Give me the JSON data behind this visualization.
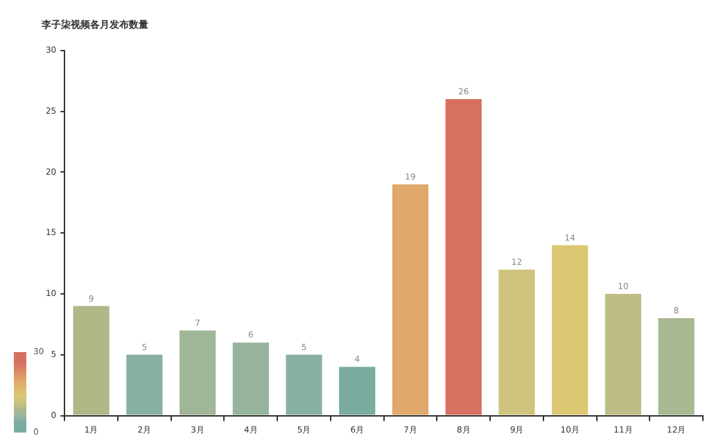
{
  "chart_data": {
    "type": "bar",
    "title": "李子柒视频各月发布数量",
    "categories": [
      "1月",
      "2月",
      "3月",
      "4月",
      "5月",
      "6月",
      "7月",
      "8月",
      "9月",
      "10月",
      "11月",
      "12月"
    ],
    "values": [
      9,
      5,
      7,
      6,
      5,
      4,
      19,
      26,
      12,
      14,
      10,
      8
    ],
    "colors": [
      "#b0b888",
      "#88b0a0",
      "#a0b698",
      "#96b49c",
      "#88b0a0",
      "#7aaca0",
      "#e0a86a",
      "#d7705f",
      "#cfc47e",
      "#dcc873",
      "#bebd84",
      "#a8b890"
    ],
    "ylim": [
      0,
      30
    ],
    "yticks": [
      0,
      5,
      10,
      15,
      20,
      25,
      30
    ],
    "grid": false,
    "legend": false,
    "data_labels": true,
    "clim": [
      0,
      30
    ],
    "cticks": [
      0,
      30
    ]
  }
}
